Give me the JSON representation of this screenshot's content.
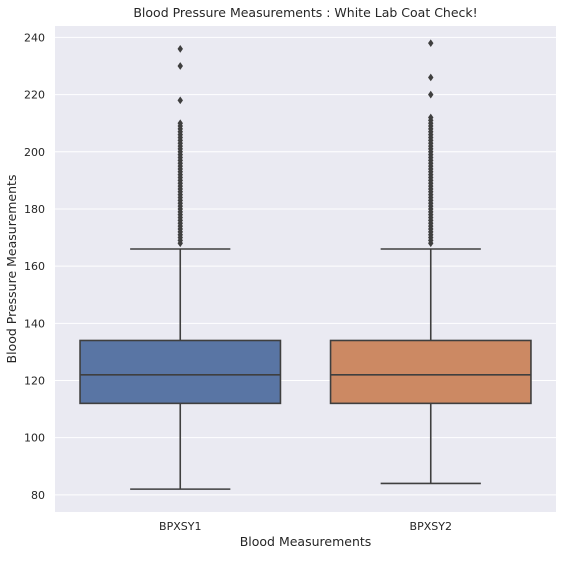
{
  "chart_data": {
    "type": "box",
    "title": "Blood Pressure Measurements : White Lab Coat Check!",
    "xlabel": "Blood Measurements",
    "ylabel": "Blood Pressure Measurements",
    "ylim": [
      74,
      244
    ],
    "yticks": [
      80,
      100,
      120,
      140,
      160,
      180,
      200,
      220,
      240
    ],
    "grid": true,
    "categories": [
      "BPXSY1",
      "BPXSY2"
    ],
    "boxes": [
      {
        "category": "BPXSY1",
        "color": "#5975a4",
        "whisker_low": 82,
        "q1": 112,
        "median": 122,
        "q3": 134,
        "whisker_high": 166,
        "outliers": [
          168,
          169,
          170,
          171,
          172,
          173,
          174,
          175,
          176,
          177,
          178,
          179,
          180,
          181,
          182,
          183,
          184,
          185,
          186,
          187,
          188,
          189,
          190,
          191,
          192,
          193,
          194,
          195,
          196,
          197,
          198,
          199,
          200,
          201,
          202,
          203,
          204,
          205,
          206,
          207,
          208,
          209,
          210,
          218,
          230,
          236
        ]
      },
      {
        "category": "BPXSY2",
        "color": "#cc8963",
        "whisker_low": 84,
        "q1": 112,
        "median": 122,
        "q3": 134,
        "whisker_high": 166,
        "outliers": [
          168,
          169,
          170,
          171,
          172,
          173,
          174,
          175,
          176,
          177,
          178,
          179,
          180,
          181,
          182,
          183,
          184,
          185,
          186,
          187,
          188,
          189,
          190,
          191,
          192,
          193,
          194,
          195,
          196,
          197,
          198,
          199,
          200,
          201,
          202,
          203,
          204,
          205,
          206,
          207,
          208,
          209,
          210,
          211,
          212,
          220,
          226,
          238
        ]
      }
    ],
    "colors": {
      "plot_background": "#eaeaf2",
      "grid": "#ffffff",
      "lines": "#3f3f3f"
    }
  }
}
